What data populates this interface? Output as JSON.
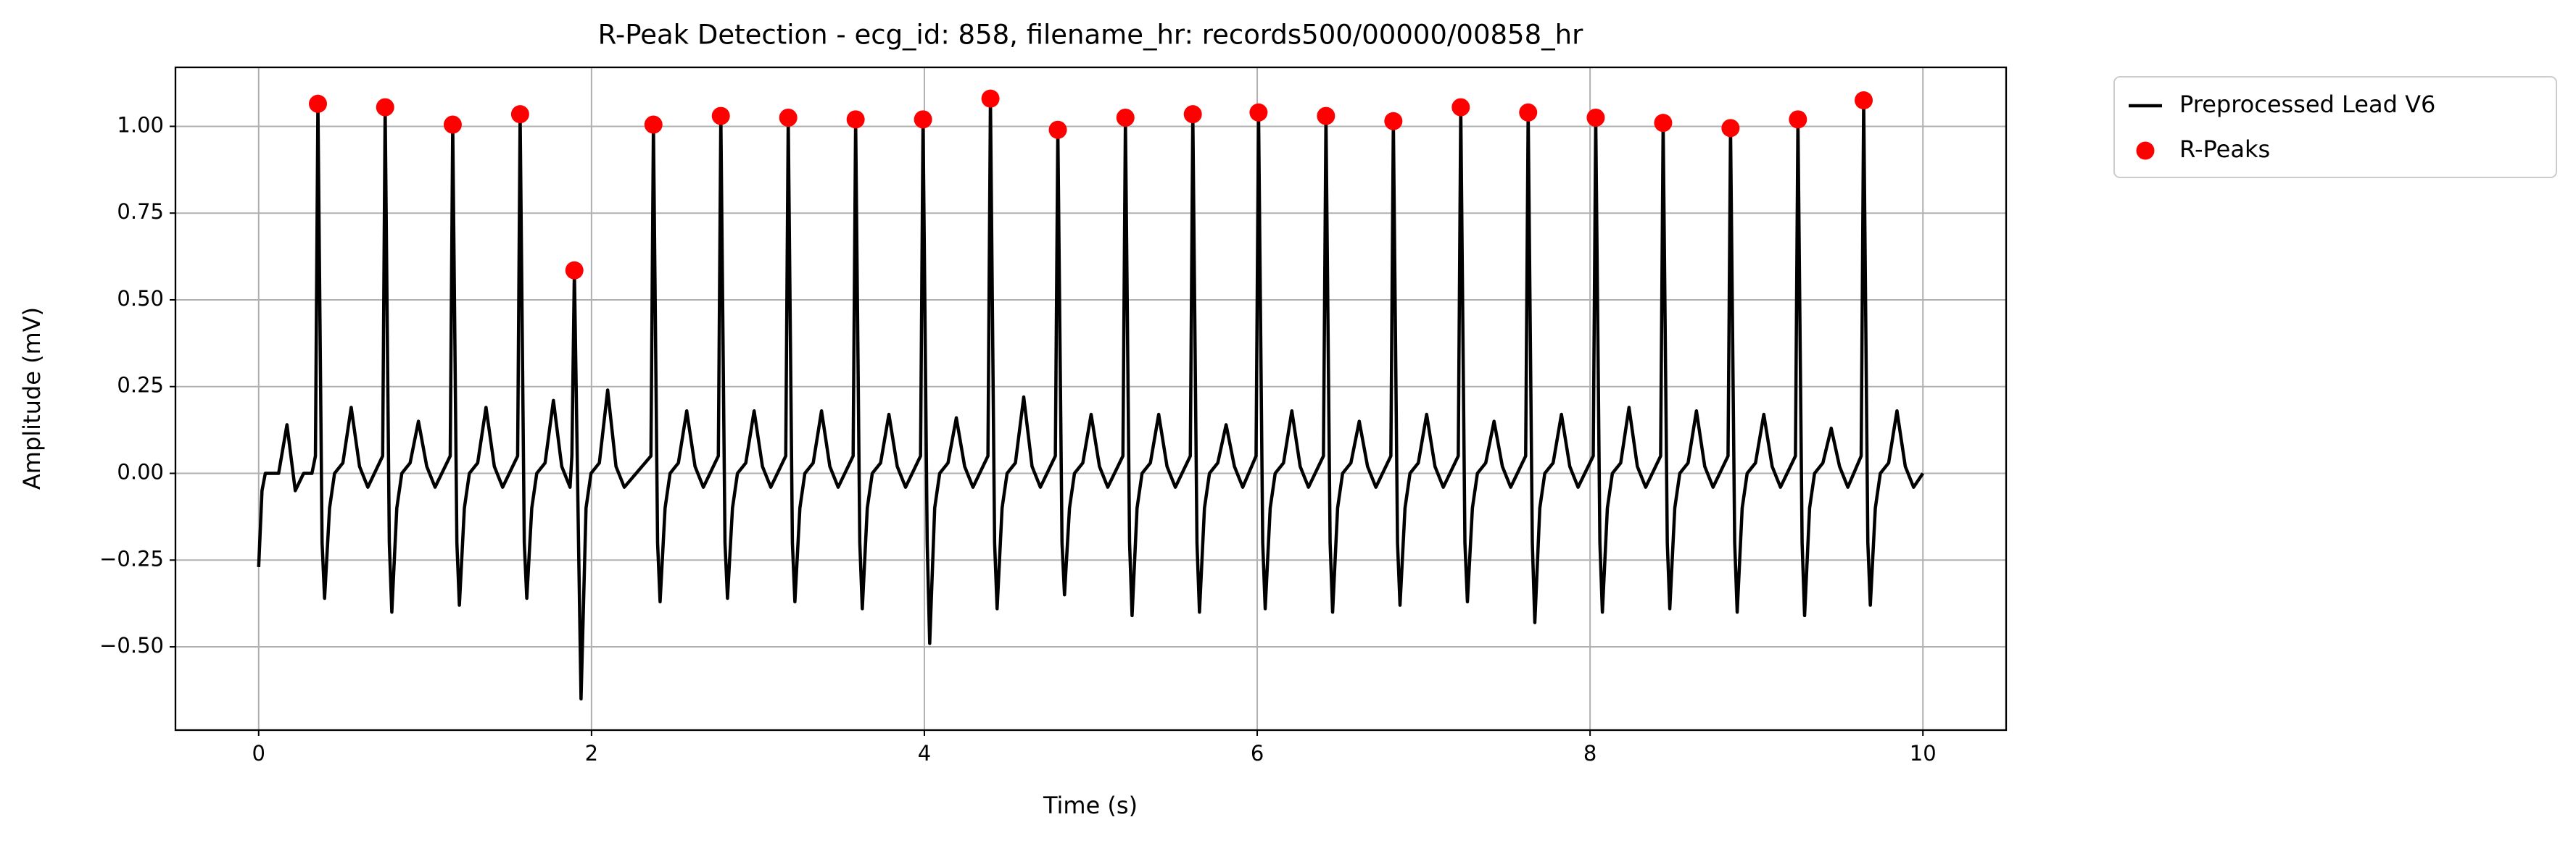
{
  "chart_data": {
    "type": "line",
    "title": "R-Peak Detection - ecg_id: 858, filename_hr: records500/00000/00858_hr",
    "x_label": "Time (s)",
    "y_label": "Amplitude (mV)",
    "xlim": [
      -0.5,
      10.5
    ],
    "ylim": [
      -0.74,
      1.17
    ],
    "xticks": [
      0,
      2,
      4,
      6,
      8,
      10
    ],
    "yticks": [
      {
        "value": -0.5,
        "label": "−0.50"
      },
      {
        "value": -0.25,
        "label": "−0.25"
      },
      {
        "value": 0,
        "label": "0.00"
      },
      {
        "value": 0.25,
        "label": "0.25"
      },
      {
        "value": 0.5,
        "label": "0.50"
      },
      {
        "value": 0.75,
        "label": "0.75"
      },
      {
        "value": 1,
        "label": "1.00"
      }
    ],
    "grid": true,
    "legend": "outside-right",
    "series": [
      {
        "name": "Preprocessed Lead V6",
        "type": "line",
        "color": "#000000",
        "x": [
          0,
          0.02,
          0.04,
          0.12,
          0.17,
          0.22,
          0.27,
          0.32,
          0.341,
          0.356,
          0.381,
          0.396,
          0.426,
          0.456,
          0.506,
          0.556,
          0.606,
          0.656,
          0.745,
          0.76,
          0.785,
          0.8,
          0.83,
          0.86,
          0.91,
          0.96,
          1.01,
          1.06,
          1.151,
          1.166,
          1.191,
          1.206,
          1.236,
          1.266,
          1.316,
          1.366,
          1.416,
          1.466,
          1.556,
          1.571,
          1.596,
          1.611,
          1.641,
          1.671,
          1.721,
          1.771,
          1.821,
          1.871,
          1.882,
          1.897,
          1.922,
          1.937,
          1.967,
          1.997,
          2.047,
          2.097,
          2.147,
          2.197,
          2.357,
          2.372,
          2.397,
          2.412,
          2.442,
          2.472,
          2.522,
          2.572,
          2.622,
          2.672,
          2.762,
          2.777,
          2.802,
          2.817,
          2.847,
          2.877,
          2.927,
          2.977,
          3.027,
          3.077,
          3.167,
          3.182,
          3.207,
          3.222,
          3.252,
          3.282,
          3.332,
          3.382,
          3.432,
          3.482,
          3.572,
          3.587,
          3.612,
          3.627,
          3.657,
          3.687,
          3.737,
          3.787,
          3.837,
          3.887,
          3.977,
          3.992,
          4.017,
          4.032,
          4.062,
          4.092,
          4.142,
          4.192,
          4.242,
          4.292,
          4.382,
          4.397,
          4.422,
          4.437,
          4.467,
          4.497,
          4.547,
          4.597,
          4.647,
          4.697,
          4.787,
          4.802,
          4.827,
          4.842,
          4.872,
          4.902,
          4.952,
          5.002,
          5.052,
          5.102,
          5.193,
          5.208,
          5.233,
          5.248,
          5.278,
          5.308,
          5.358,
          5.408,
          5.458,
          5.508,
          5.598,
          5.613,
          5.638,
          5.653,
          5.683,
          5.713,
          5.763,
          5.813,
          5.863,
          5.913,
          5.993,
          6.008,
          6.033,
          6.048,
          6.078,
          6.108,
          6.158,
          6.208,
          6.258,
          6.308,
          6.398,
          6.413,
          6.438,
          6.453,
          6.483,
          6.513,
          6.563,
          6.613,
          6.663,
          6.713,
          6.803,
          6.818,
          6.843,
          6.858,
          6.888,
          6.918,
          6.968,
          7.018,
          7.068,
          7.118,
          7.208,
          7.223,
          7.248,
          7.263,
          7.293,
          7.323,
          7.373,
          7.423,
          7.473,
          7.523,
          7.613,
          7.628,
          7.653,
          7.668,
          7.698,
          7.728,
          7.778,
          7.828,
          7.878,
          7.928,
          8.019,
          8.034,
          8.059,
          8.074,
          8.104,
          8.134,
          8.184,
          8.234,
          8.284,
          8.334,
          8.424,
          8.439,
          8.464,
          8.479,
          8.509,
          8.539,
          8.589,
          8.639,
          8.689,
          8.739,
          8.829,
          8.844,
          8.869,
          8.884,
          8.914,
          8.944,
          8.994,
          9.044,
          9.094,
          9.144,
          9.234,
          9.249,
          9.274,
          9.289,
          9.319,
          9.349,
          9.399,
          9.449,
          9.499,
          9.549,
          9.629,
          9.644,
          9.669,
          9.684,
          9.714,
          9.744,
          9.794,
          9.844,
          9.894,
          9.944,
          10
        ],
        "values": [
          -0.27,
          -0.05,
          0,
          0,
          0.14,
          -0.05,
          0,
          0,
          0.05,
          1.065,
          -0.2,
          -0.36,
          -0.1,
          0,
          0.03,
          0.19,
          0.02,
          -0.04,
          0.05,
          1.055,
          -0.2,
          -0.4,
          -0.1,
          0,
          0.03,
          0.15,
          0.02,
          -0.04,
          0.05,
          1.005,
          -0.2,
          -0.38,
          -0.1,
          0,
          0.03,
          0.19,
          0.02,
          -0.04,
          0.05,
          1.035,
          -0.2,
          -0.36,
          -0.1,
          0,
          0.03,
          0.21,
          0.02,
          -0.04,
          0.05,
          0.585,
          -0.2,
          -0.65,
          -0.1,
          0,
          0.03,
          0.24,
          0.02,
          -0.04,
          0.05,
          1.005,
          -0.2,
          -0.37,
          -0.1,
          0,
          0.03,
          0.18,
          0.02,
          -0.04,
          0.05,
          1.03,
          -0.2,
          -0.36,
          -0.1,
          0,
          0.03,
          0.18,
          0.02,
          -0.04,
          0.05,
          1.025,
          -0.2,
          -0.37,
          -0.1,
          0,
          0.03,
          0.18,
          0.02,
          -0.04,
          0.05,
          1.02,
          -0.2,
          -0.39,
          -0.1,
          0,
          0.03,
          0.17,
          0.02,
          -0.04,
          0.05,
          1.02,
          -0.2,
          -0.49,
          -0.1,
          0,
          0.03,
          0.16,
          0.02,
          -0.04,
          0.05,
          1.08,
          -0.2,
          -0.39,
          -0.1,
          0,
          0.03,
          0.22,
          0.02,
          -0.04,
          0.05,
          0.99,
          -0.2,
          -0.35,
          -0.1,
          0,
          0.03,
          0.17,
          0.02,
          -0.04,
          0.05,
          1.025,
          -0.2,
          -0.41,
          -0.1,
          0,
          0.03,
          0.17,
          0.02,
          -0.04,
          0.05,
          1.035,
          -0.2,
          -0.4,
          -0.1,
          0,
          0.03,
          0.14,
          0.02,
          -0.04,
          0.05,
          1.04,
          -0.2,
          -0.39,
          -0.1,
          0,
          0.03,
          0.18,
          0.02,
          -0.04,
          0.05,
          1.03,
          -0.2,
          -0.4,
          -0.1,
          0,
          0.03,
          0.15,
          0.02,
          -0.04,
          0.05,
          1.015,
          -0.2,
          -0.38,
          -0.1,
          0,
          0.03,
          0.17,
          0.02,
          -0.04,
          0.05,
          1.055,
          -0.2,
          -0.37,
          -0.1,
          0,
          0.03,
          0.15,
          0.02,
          -0.04,
          0.05,
          1.04,
          -0.2,
          -0.43,
          -0.1,
          0,
          0.03,
          0.17,
          0.02,
          -0.04,
          0.05,
          1.025,
          -0.2,
          -0.4,
          -0.1,
          0,
          0.03,
          0.19,
          0.02,
          -0.04,
          0.05,
          1.01,
          -0.2,
          -0.39,
          -0.1,
          0,
          0.03,
          0.18,
          0.02,
          -0.04,
          0.05,
          0.995,
          -0.2,
          -0.4,
          -0.1,
          0,
          0.03,
          0.17,
          0.02,
          -0.04,
          0.05,
          1.02,
          -0.2,
          -0.41,
          -0.1,
          0,
          0.03,
          0.13,
          0.02,
          -0.04,
          0.05,
          1.075,
          -0.2,
          -0.38,
          -0.1,
          0,
          0.03,
          0.18,
          0.02,
          -0.04,
          0
        ]
      },
      {
        "name": "R-Peaks",
        "type": "scatter",
        "color": "#ff0000",
        "x": [
          0.356,
          0.76,
          1.166,
          1.571,
          1.897,
          2.372,
          2.777,
          3.182,
          3.587,
          3.992,
          4.397,
          4.802,
          5.208,
          5.613,
          6.008,
          6.413,
          6.818,
          7.223,
          7.628,
          8.034,
          8.439,
          8.844,
          9.249,
          9.644
        ],
        "values": [
          1.065,
          1.055,
          1.005,
          1.035,
          0.585,
          1.005,
          1.03,
          1.025,
          1.02,
          1.02,
          1.08,
          0.99,
          1.025,
          1.035,
          1.04,
          1.03,
          1.015,
          1.055,
          1.04,
          1.025,
          1.01,
          0.995,
          1.02,
          1.075
        ]
      }
    ]
  }
}
